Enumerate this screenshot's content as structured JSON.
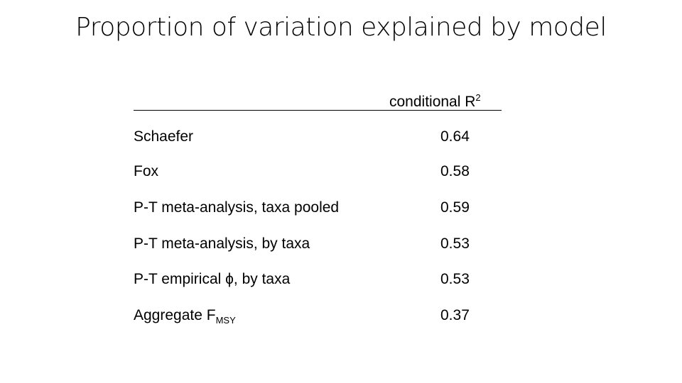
{
  "title": "Proportion of variation explained by model",
  "table": {
    "header": {
      "text": "conditional R",
      "sup": "2"
    },
    "rows": [
      {
        "label": "Schaefer",
        "value": "0.64"
      },
      {
        "label": "Fox",
        "value": "0.58"
      },
      {
        "label": "P-T meta-analysis, taxa pooled",
        "value": "0.59"
      },
      {
        "label": "P-T meta-analysis, by taxa",
        "value": "0.53"
      },
      {
        "label": "P-T empirical ϕ, by taxa",
        "value": "0.53"
      },
      {
        "label": "Aggregate F",
        "label_sub": "MSY",
        "value": "0.37"
      }
    ]
  }
}
